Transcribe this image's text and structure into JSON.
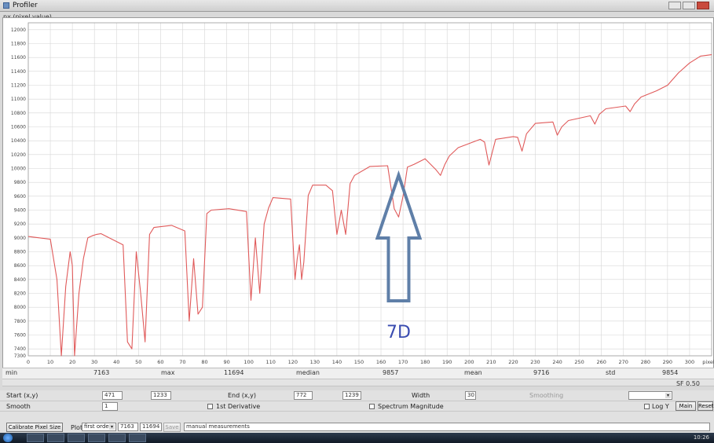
{
  "window": {
    "title": "Profiler"
  },
  "plot": {
    "y_axis_label": "px (pixel value)",
    "annotation": {
      "label": "7D",
      "color": "#3a4cb0"
    },
    "arrow_color": "#5f7fa8",
    "line_color": "#e05a5a",
    "grid_color": "#d6d6d6"
  },
  "chart_data": {
    "type": "line",
    "xlim": [
      0,
      310
    ],
    "ylim": [
      7300,
      12100
    ],
    "x_ticks": [
      "0",
      "10",
      "20",
      "30",
      "40",
      "50",
      "60",
      "70",
      "80",
      "90",
      "100",
      "110",
      "120",
      "130",
      "140",
      "150",
      "160",
      "170",
      "180",
      "190",
      "200",
      "210",
      "220",
      "230",
      "240",
      "250",
      "260",
      "270",
      "280",
      "290",
      "300",
      "pixel"
    ],
    "y_ticks": [
      "12000",
      "11800",
      "11600",
      "11400",
      "11200",
      "11000",
      "10800",
      "10600",
      "10400",
      "10200",
      "10000",
      "9800",
      "9600",
      "9400",
      "9200",
      "9000",
      "8800",
      "8600",
      "8400",
      "8200",
      "8000",
      "7800",
      "7600",
      "7400",
      "7300"
    ],
    "series": [
      {
        "x": [
          0,
          10,
          13,
          15,
          17,
          19,
          20,
          21,
          23,
          25,
          27,
          29,
          31,
          33,
          43,
          45,
          47,
          49,
          51,
          53,
          55,
          57,
          65,
          71,
          73,
          75,
          77,
          79,
          81,
          83,
          91,
          99,
          101,
          103,
          105,
          107,
          109,
          111,
          119,
          121,
          122,
          123,
          124,
          125,
          127,
          129,
          135,
          138,
          140,
          142,
          144,
          146,
          148,
          155,
          163,
          166,
          168,
          170,
          172,
          175,
          180,
          185,
          187,
          189,
          191,
          195,
          205,
          207,
          209,
          212,
          220,
          222,
          224,
          226,
          230,
          238,
          240,
          242,
          245,
          255,
          257,
          259,
          262,
          271,
          273,
          275,
          278,
          285,
          290,
          295,
          300,
          305,
          310
        ],
        "y": [
          9020,
          8980,
          8400,
          7300,
          8300,
          8800,
          8600,
          7300,
          8200,
          8700,
          9000,
          9030,
          9050,
          9060,
          8900,
          7500,
          7400,
          8800,
          8200,
          7500,
          9050,
          9150,
          9180,
          9100,
          7800,
          8700,
          7900,
          8000,
          9350,
          9400,
          9420,
          9380,
          8100,
          9000,
          8200,
          9200,
          9430,
          9580,
          9560,
          8400,
          8700,
          8900,
          8400,
          8650,
          9610,
          9760,
          9760,
          9680,
          9050,
          9400,
          9050,
          9780,
          9900,
          10030,
          10040,
          9420,
          9300,
          9600,
          10020,
          10060,
          10140,
          9980,
          9900,
          10060,
          10180,
          10300,
          10420,
          10380,
          10050,
          10420,
          10460,
          10450,
          10250,
          10500,
          10650,
          10670,
          10480,
          10600,
          10690,
          10760,
          10640,
          10780,
          10860,
          10900,
          10820,
          10930,
          11030,
          11120,
          11200,
          11380,
          11520,
          11620,
          11640
        ]
      }
    ]
  },
  "stats": [
    {
      "label": "min",
      "value": "7163"
    },
    {
      "label": "max",
      "value": "11694"
    },
    {
      "label": "median",
      "value": "9857"
    },
    {
      "label": "mean",
      "value": "9716"
    },
    {
      "label": "std",
      "value": "9854"
    }
  ],
  "sf": "SF 0.50",
  "controls": {
    "start_label": "Start (x,y)",
    "start_x": "471",
    "start_y": "1233",
    "end_label": "End (x,y)",
    "end_x": "772",
    "end_y": "1239",
    "width_label": "Width",
    "width_value": "30",
    "smoothing_label": "Smoothing",
    "smooth_label": "Smooth",
    "smooth_value": "1",
    "first_derivative": "1st Derivative",
    "spectrum_magnitude": "Spectrum Magnitude",
    "logy": "Log Y",
    "main_button": "Main",
    "reset_button": "Reset",
    "calibrate_button": "Calibrate Pixel Size",
    "plot_label": "Plot",
    "plot_select": "first order",
    "field_a": "7163",
    "field_b": "11694",
    "save_button": "Save",
    "notes": "manual measurements"
  },
  "taskbar": {
    "clock": "10:26"
  }
}
